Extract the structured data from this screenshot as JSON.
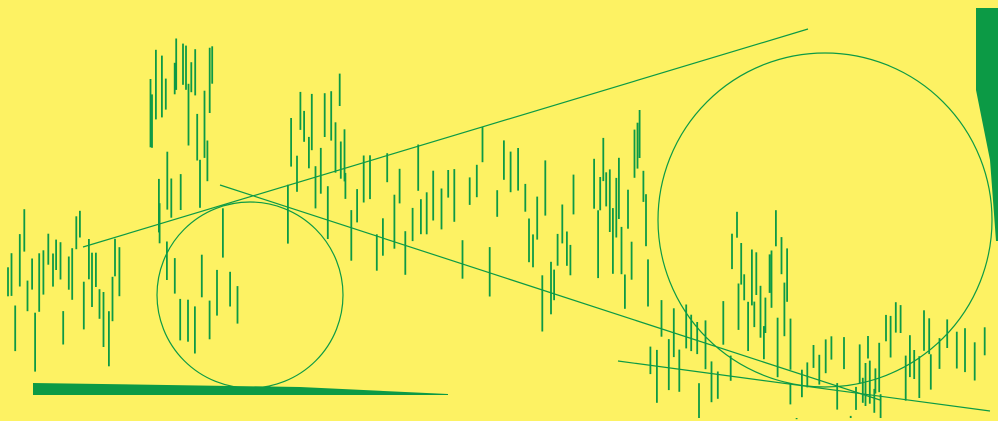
{
  "colors": {
    "background": "#fdf263",
    "stroke": "#0c9a45"
  },
  "shapes": {
    "circles": [
      {
        "name": "small-circle"
      },
      {
        "name": "large-circle"
      }
    ],
    "lines": [
      {
        "name": "long-rising-line"
      },
      {
        "name": "long-falling-line"
      },
      {
        "name": "short-falling-line"
      }
    ],
    "wedges": [
      {
        "name": "bottom-left-wedge"
      },
      {
        "name": "right-edge-bar"
      }
    ]
  }
}
